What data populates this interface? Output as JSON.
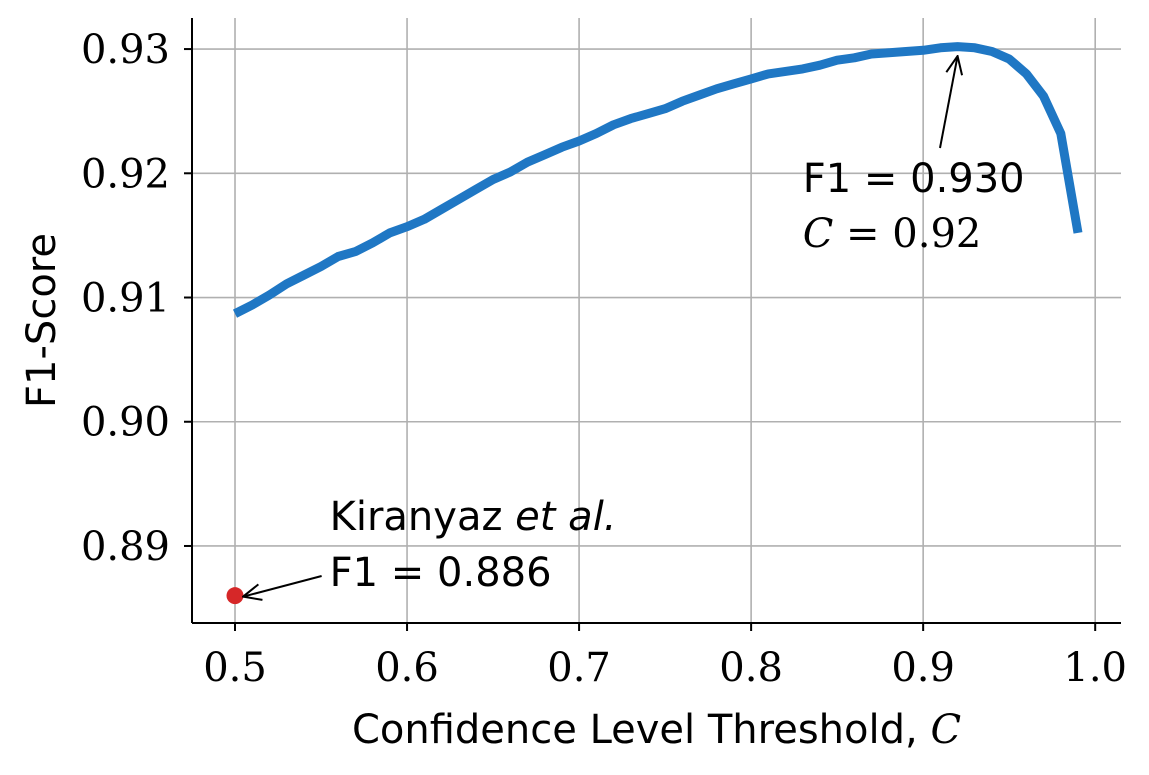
{
  "chart_data": {
    "type": "line",
    "title": "",
    "xlabel": "Confidence Level Threshold, ",
    "xlabel_symbol": "C",
    "ylabel": "F1-Score",
    "xlim": [
      0.475,
      1.015
    ],
    "ylim": [
      0.8838,
      0.9325
    ],
    "grid": true,
    "xticks": [
      0.5,
      0.6,
      0.7,
      0.8,
      0.9,
      1.0
    ],
    "xtick_labels": [
      "0.5",
      "0.6",
      "0.7",
      "0.8",
      "0.9",
      "1.0"
    ],
    "yticks": [
      0.89,
      0.9,
      0.91,
      0.92,
      0.93
    ],
    "ytick_labels": [
      "0.89",
      "0.90",
      "0.91",
      "0.92",
      "0.93"
    ],
    "series": [
      {
        "color": "#1f77c4",
        "x": [
          0.5,
          0.51,
          0.52,
          0.53,
          0.54,
          0.55,
          0.56,
          0.57,
          0.58,
          0.59,
          0.6,
          0.61,
          0.62,
          0.63,
          0.64,
          0.65,
          0.66,
          0.67,
          0.68,
          0.69,
          0.7,
          0.71,
          0.72,
          0.73,
          0.74,
          0.75,
          0.76,
          0.77,
          0.78,
          0.79,
          0.8,
          0.81,
          0.82,
          0.83,
          0.84,
          0.85,
          0.86,
          0.87,
          0.88,
          0.89,
          0.9,
          0.91,
          0.92,
          0.93,
          0.94,
          0.95,
          0.96,
          0.97,
          0.98,
          0.99
        ],
        "y": [
          0.9087,
          0.9094,
          0.9102,
          0.9111,
          0.9118,
          0.9125,
          0.9133,
          0.9137,
          0.9144,
          0.9152,
          0.9157,
          0.9163,
          0.9171,
          0.9179,
          0.9187,
          0.9195,
          0.9201,
          0.9209,
          0.9215,
          0.9221,
          0.9226,
          0.9232,
          0.9239,
          0.9244,
          0.9248,
          0.9252,
          0.9258,
          0.9263,
          0.9268,
          0.9272,
          0.9276,
          0.928,
          0.9282,
          0.9284,
          0.9287,
          0.9291,
          0.9293,
          0.9296,
          0.9297,
          0.9298,
          0.9299,
          0.9301,
          0.9302,
          0.9301,
          0.9298,
          0.9292,
          0.928,
          0.9262,
          0.9232,
          0.9152
        ]
      },
      {
        "name": "Kiranyaz et al.",
        "color": "#d62728",
        "type": "scatter",
        "x": [
          0.5
        ],
        "y": [
          0.886
        ]
      }
    ],
    "annotations": [
      {
        "id": "best",
        "line1": "F1 = 0.930",
        "line2_symbol": "C",
        "line2_rest": " = 0.92",
        "point": [
          0.92,
          0.93
        ],
        "text_at": [
          0.83,
          0.9185
        ]
      },
      {
        "id": "baseline",
        "line1_main": "Kiranyaz ",
        "line1_italic": "et al.",
        "line2": "F1 = 0.886",
        "point": [
          0.5,
          0.886
        ],
        "text_at": [
          0.555,
          0.8913
        ]
      }
    ]
  }
}
